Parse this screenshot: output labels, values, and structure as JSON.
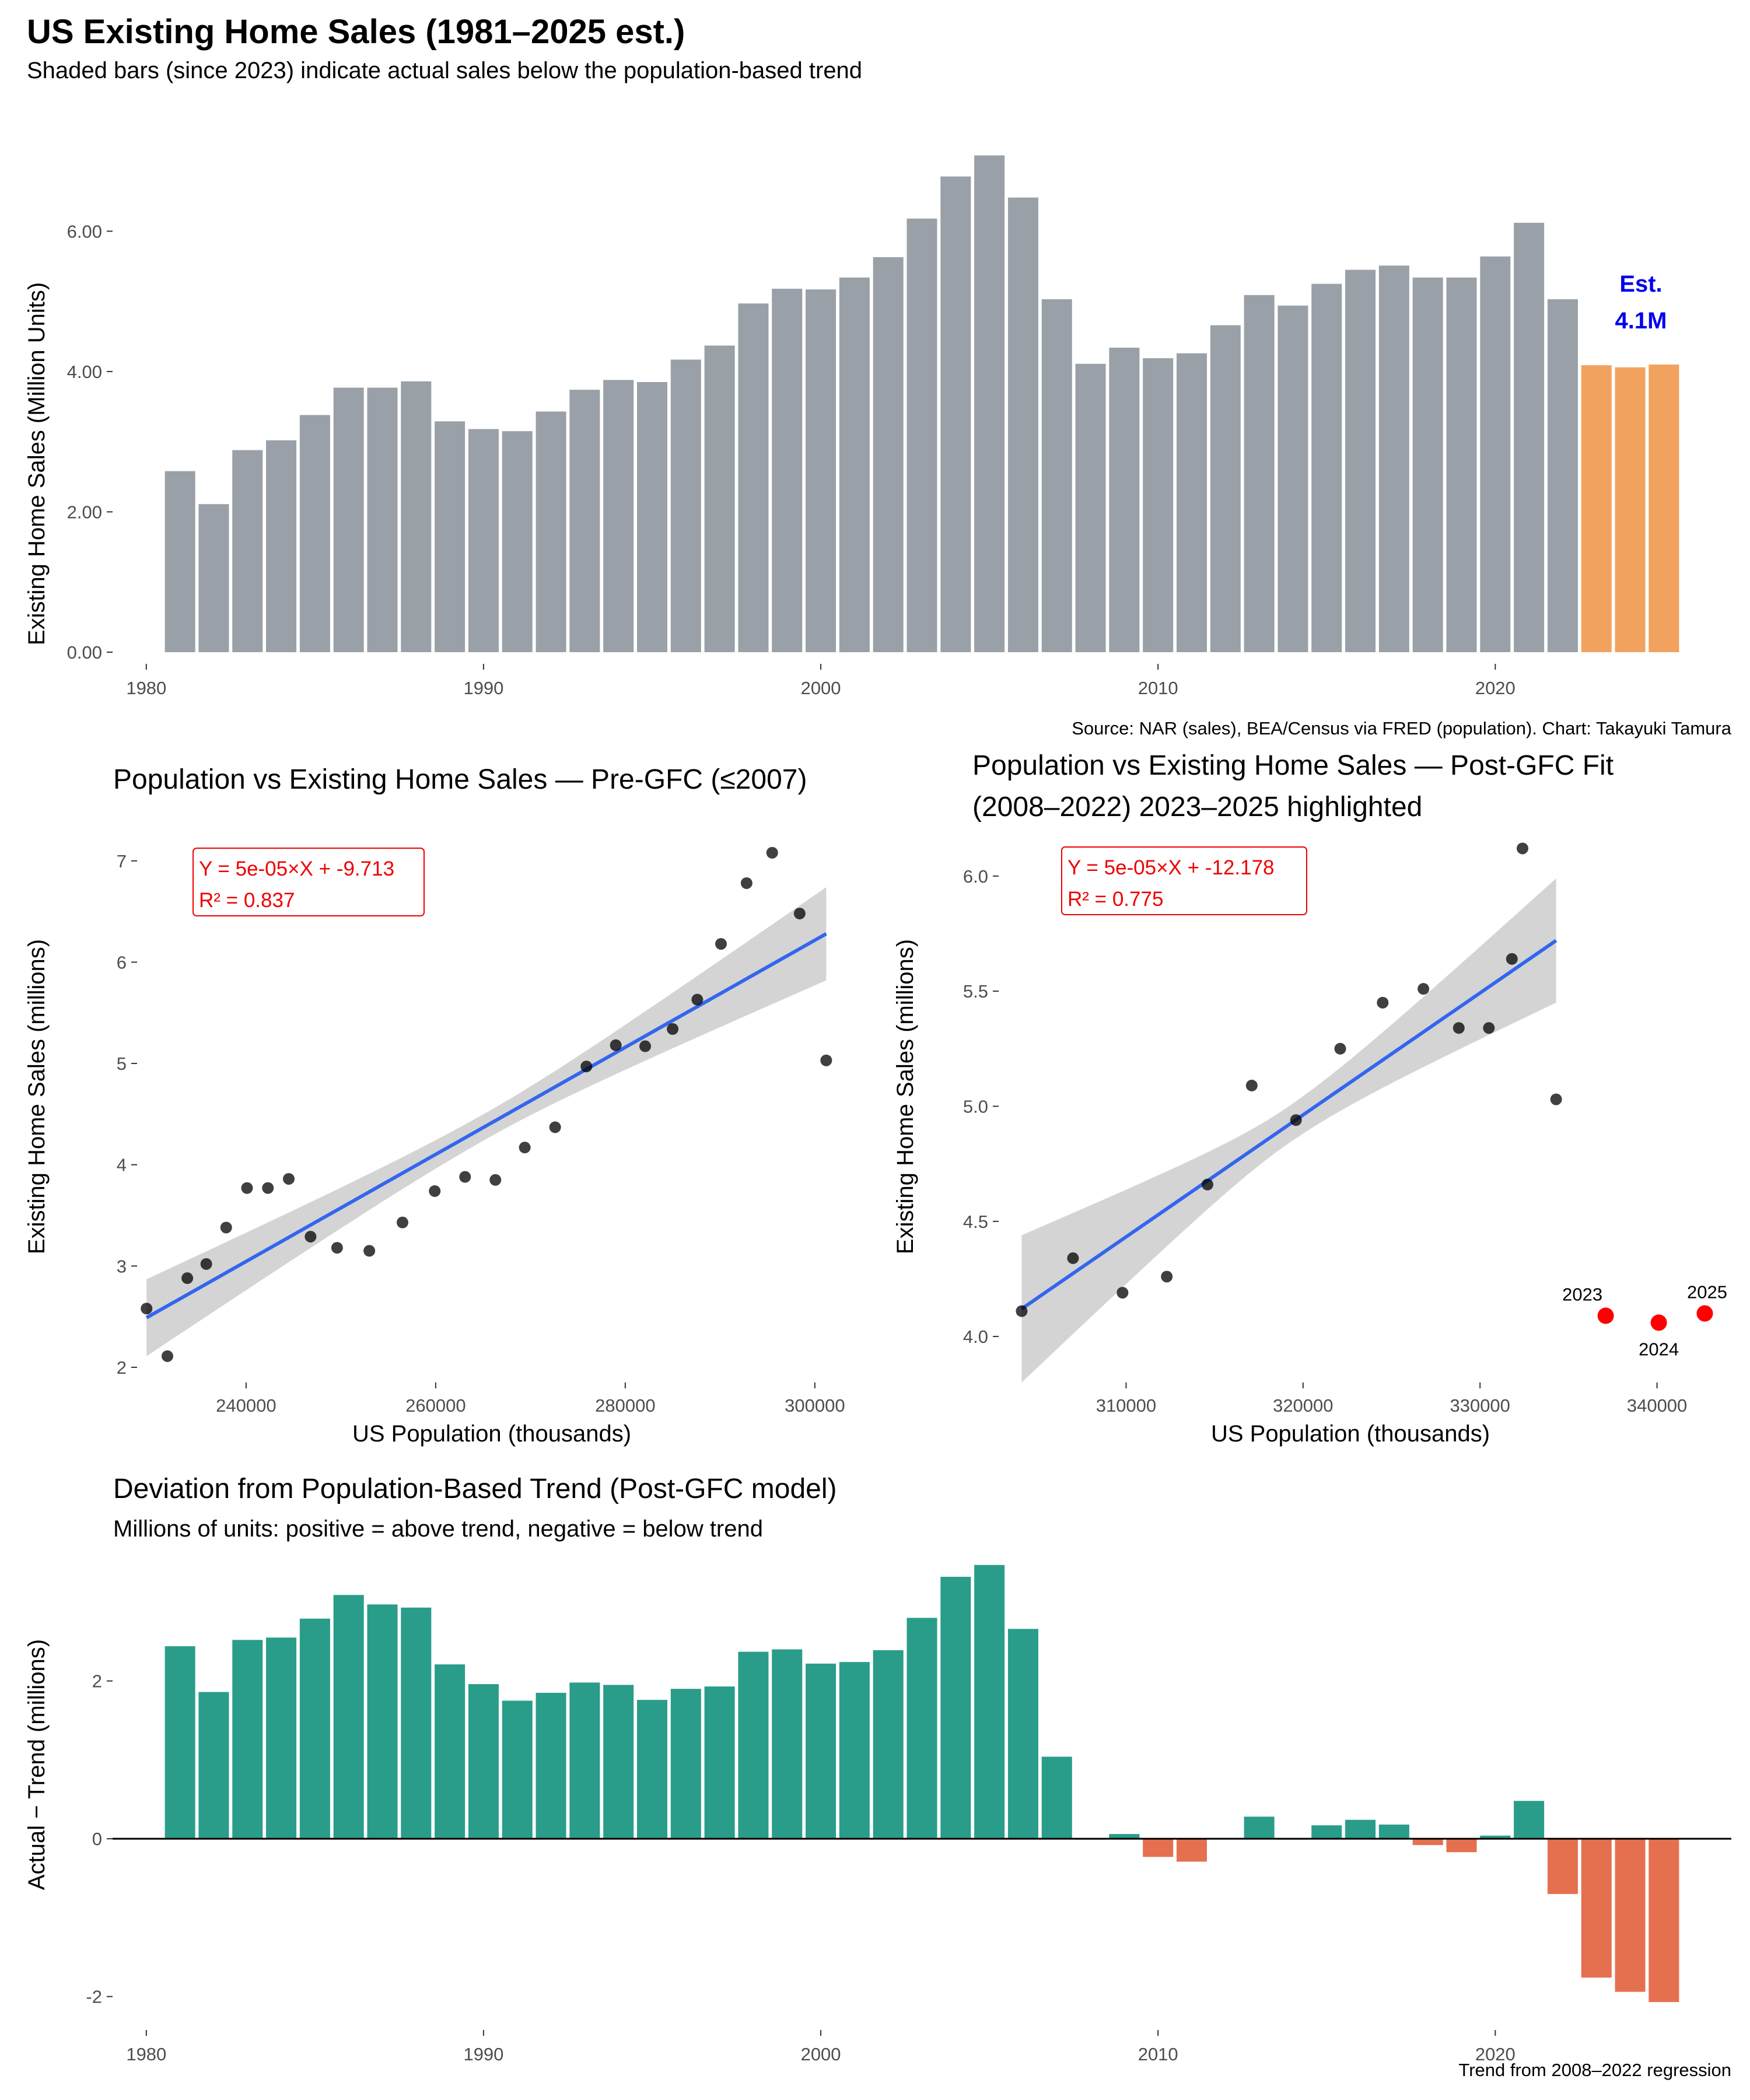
{
  "page": {
    "title": "US Existing Home Sales (1981–2025 est.)",
    "subtitle": "Shaded bars (since 2023) indicate actual sales below the population-based trend"
  },
  "colors": {
    "actual_bar": "#9aa0a7",
    "estimate_bar": "#f2a25f",
    "positive_dev": "#2a9d8a",
    "negative_dev": "#e57050",
    "fit_line": "#3366ee",
    "ribbon": "#d4d4d4",
    "highlight": "#ff0000",
    "annotation": "#0000ee",
    "equation": "#ee0000"
  },
  "chart_data": [
    {
      "type": "bar",
      "title": "",
      "xlabel": "",
      "ylabel": "Existing Home Sales (Million Units)",
      "caption": "Source: NAR (sales), BEA/Census via FRED (population). Chart: Takayuki Tamura",
      "annotation": [
        "Est.",
        "4.1M"
      ],
      "x_ticks": [
        1980,
        1990,
        2000,
        2010,
        2020
      ],
      "y_ticks": [
        "0.00",
        "2.00",
        "4.00",
        "6.00"
      ],
      "xlim": [
        1979,
        2027
      ],
      "ylim": [
        0,
        7.3
      ],
      "grid": false,
      "categories": [
        1981,
        1982,
        1983,
        1984,
        1985,
        1986,
        1987,
        1988,
        1989,
        1990,
        1991,
        1992,
        1993,
        1994,
        1995,
        1996,
        1997,
        1998,
        1999,
        2000,
        2001,
        2002,
        2003,
        2004,
        2005,
        2006,
        2007,
        2008,
        2009,
        2010,
        2011,
        2012,
        2013,
        2014,
        2015,
        2016,
        2017,
        2018,
        2019,
        2020,
        2021,
        2022,
        2023,
        2024,
        2025
      ],
      "values": [
        2.58,
        2.11,
        2.88,
        3.02,
        3.38,
        3.77,
        3.77,
        3.86,
        3.29,
        3.18,
        3.15,
        3.43,
        3.74,
        3.88,
        3.85,
        4.17,
        4.37,
        4.97,
        5.18,
        5.17,
        5.34,
        5.63,
        6.18,
        6.78,
        7.08,
        6.48,
        5.03,
        4.11,
        4.34,
        4.19,
        4.26,
        4.66,
        5.09,
        4.94,
        5.25,
        5.45,
        5.51,
        5.34,
        5.34,
        5.64,
        6.12,
        5.03,
        4.09,
        4.06,
        4.1
      ],
      "estimate_from": 2023
    },
    {
      "type": "scatter",
      "title": "Population vs Existing Home Sales — Pre-GFC (≤2007)",
      "xlabel": "US Population (thousands)",
      "ylabel": "Existing Home Sales (millions)",
      "x_ticks": [
        "240000",
        "260000",
        "280000",
        "300000"
      ],
      "y_ticks": [
        "2",
        "3",
        "4",
        "5",
        "6",
        "7"
      ],
      "xlim": [
        228500,
        304500
      ],
      "ylim": [
        1.85,
        7.35
      ],
      "equation": [
        "Y = 5e-05×X + -9.713",
        "R² = 0.837"
      ],
      "fit": {
        "x": [
          229500,
          301200
        ],
        "y": [
          2.49,
          6.28
        ],
        "band_halfwidth_ends": [
          0.38,
          0.46
        ],
        "band_halfwidth_mid": 0.13
      },
      "points": [
        {
          "x": 229500,
          "y": 2.58
        },
        {
          "x": 231700,
          "y": 2.11
        },
        {
          "x": 233800,
          "y": 2.88
        },
        {
          "x": 235800,
          "y": 3.02
        },
        {
          "x": 237900,
          "y": 3.38
        },
        {
          "x": 240100,
          "y": 3.77
        },
        {
          "x": 242300,
          "y": 3.77
        },
        {
          "x": 244500,
          "y": 3.86
        },
        {
          "x": 246800,
          "y": 3.29
        },
        {
          "x": 249600,
          "y": 3.18
        },
        {
          "x": 253000,
          "y": 3.15
        },
        {
          "x": 256500,
          "y": 3.43
        },
        {
          "x": 259900,
          "y": 3.74
        },
        {
          "x": 263100,
          "y": 3.88
        },
        {
          "x": 266300,
          "y": 3.85
        },
        {
          "x": 269400,
          "y": 4.17
        },
        {
          "x": 272600,
          "y": 4.37
        },
        {
          "x": 275900,
          "y": 4.97
        },
        {
          "x": 279000,
          "y": 5.18
        },
        {
          "x": 282100,
          "y": 5.17
        },
        {
          "x": 285000,
          "y": 5.34
        },
        {
          "x": 287600,
          "y": 5.63
        },
        {
          "x": 290100,
          "y": 6.18
        },
        {
          "x": 292800,
          "y": 6.78
        },
        {
          "x": 295500,
          "y": 7.08
        },
        {
          "x": 298400,
          "y": 6.48
        },
        {
          "x": 301200,
          "y": 5.03
        }
      ]
    },
    {
      "type": "scatter",
      "title": "Population vs Existing Home Sales — Post-GFC Fit",
      "subtitle": "(2008–2022) 2023–2025 highlighted",
      "xlabel": "US Population (thousands)",
      "ylabel": "Existing Home Sales (millions)",
      "x_ticks": [
        "310000",
        "320000",
        "330000",
        "340000"
      ],
      "y_ticks": [
        "4.0",
        "4.5",
        "5.0",
        "5.5",
        "6.0"
      ],
      "xlim": [
        302800,
        344200
      ],
      "ylim": [
        3.8,
        6.22
      ],
      "equation": [
        "Y = 5e-05×X + -12.178",
        "R² = 0.775"
      ],
      "fit": {
        "x": [
          304100,
          334300
        ],
        "y": [
          4.12,
          5.72
        ],
        "band_halfwidth_ends": [
          0.32,
          0.27
        ],
        "band_halfwidth_mid": 0.08
      },
      "points": [
        {
          "x": 304100,
          "y": 4.11
        },
        {
          "x": 307000,
          "y": 4.34
        },
        {
          "x": 309800,
          "y": 4.19
        },
        {
          "x": 312300,
          "y": 4.26
        },
        {
          "x": 314600,
          "y": 4.66
        },
        {
          "x": 317100,
          "y": 5.09
        },
        {
          "x": 319600,
          "y": 4.94
        },
        {
          "x": 322100,
          "y": 5.25
        },
        {
          "x": 324500,
          "y": 5.45
        },
        {
          "x": 326800,
          "y": 5.51
        },
        {
          "x": 328800,
          "y": 5.34
        },
        {
          "x": 330500,
          "y": 5.34
        },
        {
          "x": 331800,
          "y": 5.64
        },
        {
          "x": 332400,
          "y": 6.12
        },
        {
          "x": 334300,
          "y": 5.03
        }
      ],
      "highlight_points": [
        {
          "label": "2023",
          "x": 337100,
          "y": 4.09
        },
        {
          "label": "2024",
          "x": 340100,
          "y": 4.06
        },
        {
          "label": "2025",
          "x": 342700,
          "y": 4.1
        }
      ]
    },
    {
      "type": "bar",
      "title": "Deviation from Population-Based Trend (Post-GFC model)",
      "subtitle": "Millions of units: positive = above trend, negative = below trend",
      "xlabel": "",
      "ylabel": "Actual − Trend (millions)",
      "caption": "Trend from 2008–2022 regression",
      "x_ticks": [
        1980,
        1990,
        2000,
        2010,
        2020
      ],
      "y_ticks": [
        "-2",
        "0",
        "2"
      ],
      "xlim": [
        1979,
        2027
      ],
      "ylim": [
        -2.35,
        3.55
      ],
      "grid": false,
      "categories": [
        1981,
        1982,
        1983,
        1984,
        1985,
        1986,
        1987,
        1988,
        1989,
        1990,
        1991,
        1992,
        1993,
        1994,
        1995,
        1996,
        1997,
        1998,
        1999,
        2000,
        2001,
        2002,
        2003,
        2004,
        2005,
        2006,
        2007,
        2008,
        2009,
        2010,
        2011,
        2012,
        2013,
        2014,
        2015,
        2016,
        2017,
        2018,
        2019,
        2020,
        2021,
        2022,
        2023,
        2024,
        2025
      ],
      "values": [
        2.44,
        1.86,
        2.52,
        2.55,
        2.79,
        3.09,
        2.97,
        2.93,
        2.21,
        1.96,
        1.75,
        1.85,
        1.98,
        1.95,
        1.76,
        1.9,
        1.93,
        2.37,
        2.4,
        2.22,
        2.24,
        2.39,
        2.8,
        3.32,
        3.47,
        2.66,
        1.04,
        0.0,
        0.06,
        -0.23,
        -0.29,
        0.01,
        0.28,
        0.0,
        0.17,
        0.24,
        0.18,
        -0.08,
        -0.17,
        0.04,
        0.48,
        -0.7,
        -1.76,
        -1.94,
        -2.07
      ]
    }
  ]
}
